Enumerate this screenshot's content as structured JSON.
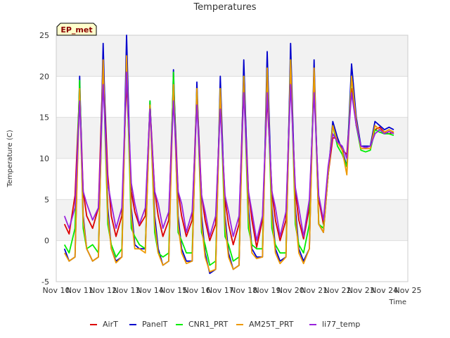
{
  "chart_data": {
    "type": "line",
    "title": "Temperatures",
    "xlabel": "Time",
    "ylabel": "Temperature (C)",
    "badge": "EP_met",
    "ylim": [
      -5,
      25
    ],
    "yticks": [
      -5,
      0,
      5,
      10,
      15,
      20,
      25
    ],
    "xlim": [
      0,
      15
    ],
    "xticks": [
      "Nov 10",
      "Nov 11",
      "Nov 12",
      "Nov 13",
      "Nov 14",
      "Nov 15",
      "Nov 16",
      "Nov 17",
      "Nov 18",
      "Nov 19",
      "Nov 20",
      "Nov 21",
      "Nov 22",
      "Nov 23",
      "Nov 24",
      "Nov 25"
    ],
    "grid": true,
    "legend_position": "bottom",
    "series": [
      {
        "name": "AirT",
        "color": "#dd0000",
        "x": [
          0.35,
          0.55,
          0.8,
          1.0,
          1.15,
          1.3,
          1.55,
          1.8,
          2.0,
          2.2,
          2.35,
          2.55,
          2.8,
          3.0,
          3.2,
          3.35,
          3.55,
          3.8,
          4.0,
          4.2,
          4.35,
          4.55,
          4.8,
          5.0,
          5.2,
          5.35,
          5.55,
          5.8,
          6.0,
          6.2,
          6.35,
          6.55,
          6.8,
          7.0,
          7.2,
          7.35,
          7.55,
          7.8,
          8.0,
          8.2,
          8.35,
          8.55,
          8.8,
          9.0,
          9.2,
          9.35,
          9.55,
          9.8,
          10.0,
          10.2,
          10.35,
          10.55,
          10.8,
          11.0,
          11.2,
          11.4,
          11.6,
          11.8,
          12.0,
          12.2,
          12.4,
          12.6,
          12.8,
          13.0,
          13.2,
          13.4,
          13.6,
          13.8,
          14.0,
          14.2,
          14.4
        ],
        "y": [
          2.0,
          0.8,
          5.5,
          18.5,
          6.0,
          3.0,
          1.5,
          4.0,
          22.0,
          8.0,
          3.0,
          0.5,
          3.0,
          19.5,
          6.0,
          3.5,
          1.8,
          3.0,
          16.5,
          6.0,
          3.0,
          0.5,
          2.5,
          19.5,
          6.0,
          3.0,
          0.5,
          2.5,
          18.0,
          5.5,
          2.5,
          0.0,
          2.0,
          17.0,
          5.0,
          2.0,
          -0.5,
          2.0,
          20.0,
          6.0,
          2.5,
          -0.8,
          2.5,
          17.5,
          6.0,
          2.5,
          0.0,
          2.5,
          20.5,
          6.0,
          2.5,
          0.2,
          4.0,
          19.0,
          5.0,
          2.0,
          8.0,
          12.5,
          12.5,
          11.0,
          10.5,
          18.5,
          14.0,
          11.5,
          11.3,
          11.5,
          13.5,
          13.8,
          13.2,
          13.0,
          13.2
        ]
      },
      {
        "name": "PanelT",
        "color": "#0000cc",
        "x": [
          0.35,
          0.55,
          0.8,
          1.0,
          1.15,
          1.3,
          1.55,
          1.8,
          2.0,
          2.2,
          2.35,
          2.55,
          2.8,
          3.0,
          3.2,
          3.35,
          3.55,
          3.8,
          4.0,
          4.2,
          4.35,
          4.55,
          4.8,
          5.0,
          5.2,
          5.35,
          5.55,
          5.8,
          6.0,
          6.2,
          6.35,
          6.55,
          6.8,
          7.0,
          7.2,
          7.35,
          7.55,
          7.8,
          8.0,
          8.2,
          8.35,
          8.55,
          8.8,
          9.0,
          9.2,
          9.35,
          9.55,
          9.8,
          10.0,
          10.2,
          10.35,
          10.55,
          10.8,
          11.0,
          11.2,
          11.4,
          11.6,
          11.8,
          12.0,
          12.2,
          12.4,
          12.6,
          12.8,
          13.0,
          13.2,
          13.4,
          13.6,
          13.8,
          14.0,
          14.2,
          14.4
        ],
        "y": [
          -1.0,
          -2.5,
          -2.0,
          20.0,
          3.0,
          -1.0,
          -2.5,
          -2.0,
          24.0,
          4.0,
          -1.0,
          -2.5,
          -2.0,
          25.0,
          4.0,
          -0.5,
          -1.0,
          -1.0,
          17.0,
          3.0,
          -1.0,
          -3.0,
          -2.5,
          20.8,
          3.0,
          -1.0,
          -2.5,
          -2.5,
          19.3,
          3.0,
          -1.5,
          -4.0,
          -3.5,
          20.0,
          3.0,
          -1.5,
          -3.5,
          -3.0,
          22.0,
          4.0,
          -1.0,
          -2.0,
          -2.0,
          23.0,
          4.0,
          -1.0,
          -2.5,
          -2.0,
          24.0,
          4.0,
          -1.0,
          -2.5,
          -1.0,
          22.0,
          2.0,
          1.0,
          8.0,
          14.5,
          12.5,
          11.0,
          9.0,
          21.5,
          15.0,
          11.5,
          11.5,
          11.5,
          14.5,
          14.0,
          13.5,
          13.8,
          13.5
        ]
      },
      {
        "name": "CNR1_PRT",
        "color": "#00ee00",
        "x": [
          0.35,
          0.55,
          0.8,
          1.0,
          1.15,
          1.3,
          1.55,
          1.8,
          2.0,
          2.2,
          2.35,
          2.55,
          2.8,
          3.0,
          3.2,
          3.35,
          3.55,
          3.8,
          4.0,
          4.2,
          4.35,
          4.55,
          4.8,
          5.0,
          5.2,
          5.35,
          5.55,
          5.8,
          6.0,
          6.2,
          6.35,
          6.55,
          6.8,
          7.0,
          7.2,
          7.35,
          7.55,
          7.8,
          8.0,
          8.2,
          8.35,
          8.55,
          8.8,
          9.0,
          9.2,
          9.35,
          9.55,
          9.8,
          10.0,
          10.2,
          10.35,
          10.55,
          10.8,
          11.0,
          11.2,
          11.4,
          11.6,
          11.8,
          12.0,
          12.2,
          12.4,
          12.6,
          12.8,
          13.0,
          13.2,
          13.4,
          13.6,
          13.8,
          14.0,
          14.2,
          14.4
        ],
        "y": [
          -0.5,
          -1.5,
          1.5,
          19.5,
          1.5,
          -1.0,
          -0.5,
          -1.5,
          21.0,
          2.0,
          -0.5,
          -2.0,
          -1.0,
          22.0,
          1.5,
          0.5,
          -0.5,
          -1.0,
          17.0,
          1.0,
          -1.5,
          -2.0,
          -1.5,
          20.5,
          1.0,
          0.0,
          -1.5,
          -1.5,
          18.5,
          1.0,
          -0.5,
          -3.0,
          -2.5,
          18.5,
          0.5,
          -0.5,
          -2.5,
          -2.0,
          20.0,
          1.5,
          -0.5,
          -1.0,
          -1.0,
          21.0,
          1.5,
          -0.5,
          -1.5,
          -1.5,
          22.0,
          2.0,
          -0.5,
          -1.5,
          2.0,
          20.5,
          2.0,
          1.5,
          8.0,
          14.0,
          11.5,
          10.5,
          9.0,
          20.0,
          14.0,
          11.0,
          10.8,
          11.0,
          13.5,
          13.2,
          13.0,
          13.0,
          12.8
        ]
      },
      {
        "name": "AM25T_PRT",
        "color": "#ee9900",
        "x": [
          0.35,
          0.55,
          0.8,
          1.0,
          1.15,
          1.3,
          1.55,
          1.8,
          2.0,
          2.2,
          2.35,
          2.55,
          2.8,
          3.0,
          3.2,
          3.35,
          3.55,
          3.8,
          4.0,
          4.2,
          4.35,
          4.55,
          4.8,
          5.0,
          5.2,
          5.35,
          5.55,
          5.8,
          6.0,
          6.2,
          6.35,
          6.55,
          6.8,
          7.0,
          7.2,
          7.35,
          7.55,
          7.8,
          8.0,
          8.2,
          8.35,
          8.55,
          8.8,
          9.0,
          9.2,
          9.35,
          9.55,
          9.8,
          10.0,
          10.2,
          10.35,
          10.55,
          10.8,
          11.0,
          11.2,
          11.4,
          11.6,
          11.8,
          12.0,
          12.2,
          12.4,
          12.6,
          12.8,
          13.0,
          13.2,
          13.4,
          13.6,
          13.8,
          14.0,
          14.2,
          14.4
        ],
        "y": [
          -1.5,
          -2.5,
          -2.0,
          18.5,
          2.5,
          -1.0,
          -2.5,
          -2.0,
          22.0,
          3.0,
          -1.0,
          -2.7,
          -2.0,
          22.5,
          3.0,
          -1.0,
          -1.0,
          -1.5,
          16.5,
          2.0,
          -1.5,
          -3.0,
          -2.5,
          19.0,
          2.0,
          -1.5,
          -2.8,
          -2.5,
          18.5,
          2.0,
          -2.0,
          -3.8,
          -3.5,
          18.5,
          2.0,
          -2.0,
          -3.5,
          -3.0,
          20.0,
          3.0,
          -1.5,
          -2.2,
          -2.0,
          21.0,
          3.0,
          -1.5,
          -2.8,
          -2.0,
          22.0,
          3.0,
          -1.5,
          -2.8,
          -1.0,
          21.0,
          2.0,
          1.0,
          8.0,
          14.0,
          12.0,
          11.0,
          8.0,
          20.0,
          14.5,
          11.2,
          11.2,
          11.2,
          14.0,
          13.5,
          13.2,
          13.5,
          13.2
        ]
      },
      {
        "name": "li77_temp",
        "color": "#9922dd",
        "x": [
          0.35,
          0.55,
          0.8,
          1.0,
          1.15,
          1.3,
          1.55,
          1.8,
          2.0,
          2.2,
          2.35,
          2.55,
          2.8,
          3.0,
          3.2,
          3.35,
          3.55,
          3.8,
          4.0,
          4.2,
          4.35,
          4.55,
          4.8,
          5.0,
          5.2,
          5.35,
          5.55,
          5.8,
          6.0,
          6.2,
          6.35,
          6.55,
          6.8,
          7.0,
          7.2,
          7.35,
          7.55,
          7.8,
          8.0,
          8.2,
          8.35,
          8.55,
          8.8,
          9.0,
          9.2,
          9.35,
          9.55,
          9.8,
          10.0,
          10.2,
          10.35,
          10.55,
          10.8,
          11.0,
          11.2,
          11.4,
          11.6,
          11.8,
          12.0,
          12.2,
          12.4,
          12.6,
          12.8,
          13.0,
          13.2,
          13.4,
          13.6,
          13.8,
          14.0,
          14.2,
          14.4
        ],
        "y": [
          3.0,
          1.5,
          4.0,
          17.0,
          6.0,
          4.5,
          2.5,
          4.0,
          19.0,
          7.0,
          4.5,
          1.5,
          4.0,
          20.5,
          7.0,
          4.5,
          2.0,
          4.0,
          16.0,
          6.0,
          4.5,
          1.5,
          3.5,
          17.0,
          6.0,
          4.5,
          1.0,
          3.5,
          16.5,
          5.5,
          3.5,
          0.5,
          3.0,
          16.0,
          5.5,
          3.5,
          0.5,
          3.0,
          18.0,
          6.0,
          3.5,
          0.0,
          3.0,
          18.0,
          6.0,
          4.0,
          0.5,
          3.5,
          19.0,
          6.5,
          4.0,
          0.5,
          5.0,
          18.0,
          5.5,
          2.5,
          9.0,
          13.0,
          12.0,
          11.5,
          10.0,
          18.0,
          14.0,
          11.5,
          11.3,
          11.5,
          13.0,
          13.5,
          13.0,
          13.3,
          13.0
        ]
      }
    ]
  }
}
